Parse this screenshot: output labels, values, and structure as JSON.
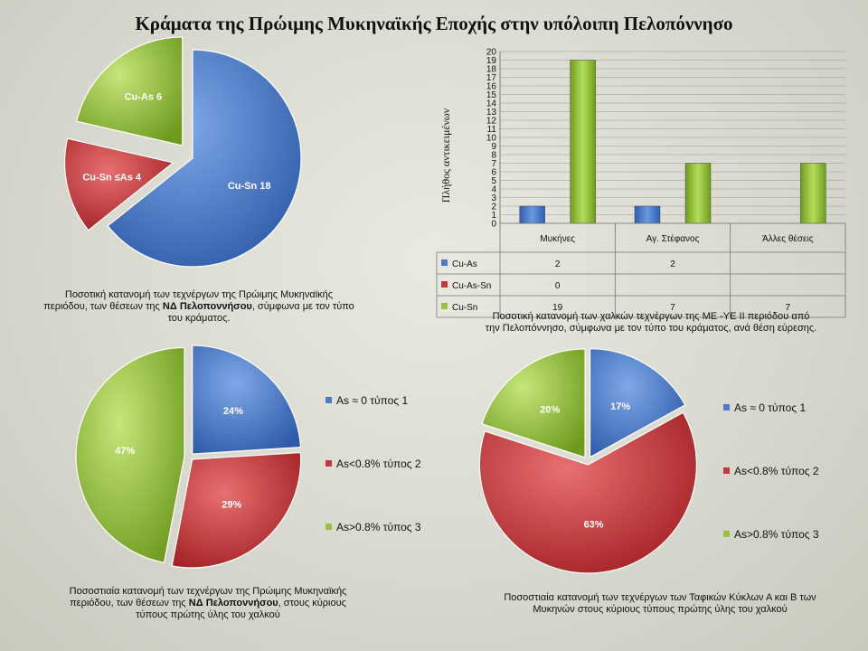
{
  "title": "Κράματα της Πρώιμης Μυκηναϊκής Εποχής στην υπόλοιπη Πελοπόννησο",
  "captions": {
    "c1_l1": "Ποσοτική κατανομή των τεχνέργων της Πρώιμης Μυκηναϊκής",
    "c1_l2a": "περιόδου, των θέσεων της ",
    "c1_l2b": "ΝΔ Πελοποννήσου",
    "c1_l2c": ",  σύμφωνα με τον τύπο",
    "c1_l3": "του κράματος.",
    "c2_l1": "Ποσοτική κατανομή των χαλκών τεχνέργων της ΜΕ -ΥΕ ΙΙ περιόδου από",
    "c2_l2": "την Πελοπόννησο, σύμφωνα με τον τύπο του κράματος,  ανά θέση εύρεσης.",
    "c3_l1": "Ποσοστιαία κατανομή των τεχνέργων της Πρώιμης Μυκηναϊκής",
    "c3_l2a": "περιόδου, των θέσεων της ",
    "c3_l2b": "ΝΔ Πελοποννήσου",
    "c3_l2c": ",  στους κύριους",
    "c3_l3": "τύπους πρώτης ύλης του χαλκού",
    "c4_l1": "Ποσοστιαία κατανομή των τεχνέργων των Ταφικών  Κύκλων Α  και Β των",
    "c4_l2": "Μυκηνών στους κύριους τύπους πρώτης ύλης του χαλκού"
  },
  "colors": {
    "blue": "#4a7ac8",
    "red": "#c8383a",
    "green": "#9ac13e"
  },
  "chart_data": [
    {
      "type": "pie",
      "slices": [
        {
          "label": "Cu-Sn",
          "value": 18,
          "color": "#4a7ac8"
        },
        {
          "label": "Cu-Sn ≤As",
          "value": 4,
          "color": "#c8383a"
        },
        {
          "label": "Cu-As",
          "value": 6,
          "color": "#9ac13e"
        }
      ]
    },
    {
      "type": "bar",
      "ylabel": "Πλήθος  αντικειμένων",
      "ylim": [
        0,
        20
      ],
      "yticks": [
        0,
        1,
        2,
        3,
        4,
        5,
        6,
        7,
        8,
        9,
        10,
        11,
        12,
        13,
        14,
        15,
        16,
        17,
        18,
        19,
        20
      ],
      "categories": [
        "Μυκήνες",
        "Αγ. Στέφανος",
        "Άλλες θέσεις"
      ],
      "series": [
        {
          "name": "Cu-As",
          "values": [
            2,
            2,
            null
          ],
          "color": "#4a7ac8"
        },
        {
          "name": "Cu-As-Sn",
          "values": [
            0,
            null,
            null
          ],
          "color": "#c8383a"
        },
        {
          "name": "Cu-Sn",
          "values": [
            19,
            7,
            7
          ],
          "color": "#9ac13e"
        }
      ],
      "table": [
        [
          "2",
          "2",
          ""
        ],
        [
          "0",
          "",
          ""
        ],
        [
          "19",
          "7",
          "7"
        ]
      ],
      "grid": true
    },
    {
      "type": "pie",
      "slices": [
        {
          "label": "24%",
          "legend": "As ≈ 0    τύπος 1",
          "value": 24,
          "color": "#4a7ac8"
        },
        {
          "label": "29%",
          "legend": "As<0.8%  τύπος 2",
          "value": 29,
          "color": "#c8383a"
        },
        {
          "label": "47%",
          "legend": "As>0.8%  τύπος 3",
          "value": 47,
          "color": "#9ac13e"
        }
      ],
      "legend_position": "right"
    },
    {
      "type": "pie",
      "slices": [
        {
          "label": "17%",
          "legend": "As ≈ 0    τύπος 1",
          "value": 17,
          "color": "#4a7ac8"
        },
        {
          "label": "63%",
          "legend": "As<0.8%  τύπος 2",
          "value": 63,
          "color": "#c8383a"
        },
        {
          "label": "20%",
          "legend": "As>0.8%  τύπος 3",
          "value": 20,
          "color": "#9ac13e"
        }
      ],
      "legend_position": "right"
    }
  ]
}
